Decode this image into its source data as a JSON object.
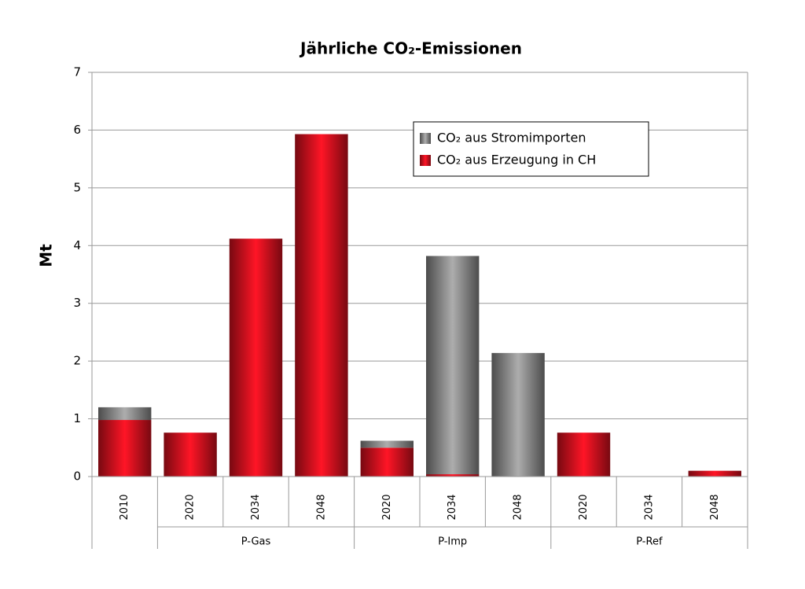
{
  "chart_data": {
    "type": "stacked_bar",
    "title": "Jährliche CO₂-Emissionen",
    "y_label": "Mt",
    "categories": [
      "2010",
      "2020",
      "2034",
      "2048",
      "2020",
      "2034",
      "2048",
      "2020",
      "2034",
      "2048"
    ],
    "groups": [
      null,
      "P-Gas",
      "P-Gas",
      "P-Gas",
      "P-Imp",
      "P-Imp",
      "P-Imp",
      "P-Ref",
      "P-Ref",
      "P-Ref"
    ],
    "series": [
      {
        "name": "CO₂ aus Stromimporten",
        "color": "#8a8a8a",
        "values": [
          0.22,
          0,
          0,
          0,
          0.12,
          3.78,
          2.14,
          0,
          0,
          0
        ]
      },
      {
        "name": "CO₂ aus Erzeugung in CH",
        "color": "#d8111e",
        "values": [
          0.98,
          0.76,
          4.12,
          5.93,
          0.5,
          0.04,
          0,
          0.76,
          0,
          0.1
        ]
      }
    ],
    "ylim": [
      0,
      7
    ],
    "yticks": [
      0,
      1,
      2,
      3,
      4,
      5,
      6,
      7
    ],
    "grid": true,
    "legend": "top-right"
  }
}
